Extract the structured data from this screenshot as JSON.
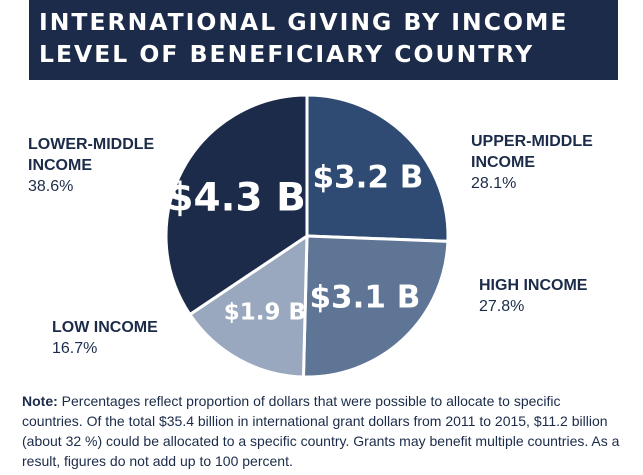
{
  "header": {
    "title": "INTERNATIONAL GIVING BY INCOME LEVEL OF BENEFICIARY COUNTRY"
  },
  "chart_data": {
    "type": "pie",
    "title": "INTERNATIONAL GIVING BY INCOME LEVEL OF BENEFICIARY COUNTRY",
    "slices": [
      {
        "label": "UPPER-MIDDLE INCOME",
        "value": 3.2,
        "value_label": "$3.2 B",
        "percent": 28.1,
        "percent_label": "28.1%",
        "color": "#2f4b73"
      },
      {
        "label": "HIGH INCOME",
        "value": 3.1,
        "value_label": "$3.1 B",
        "percent": 27.8,
        "percent_label": "27.8%",
        "color": "#5f7596"
      },
      {
        "label": "LOW INCOME",
        "value": 1.9,
        "value_label": "$1.9 B",
        "percent": 16.7,
        "percent_label": "16.7%",
        "color": "#9aa8bf"
      },
      {
        "label": "LOWER-MIDDLE INCOME",
        "value": 4.3,
        "value_label": "$4.3 B",
        "percent": 38.6,
        "percent_label": "38.6%",
        "color": "#1b2b49"
      }
    ]
  },
  "note": {
    "label": "Note:",
    "text": " Percentages reflect proportion of dollars that were possible to allocate to specific countries. Of the total $35.4 billion in international grant dollars from 2011 to 2015, $11.2 billion (about 32 %) could be allocated to a specific country. Grants may benefit multiple countries. As a result, figures do not add up to 100 percent."
  },
  "colors": {
    "header_bg": "#1b2b49",
    "text": "#1b2b49"
  }
}
